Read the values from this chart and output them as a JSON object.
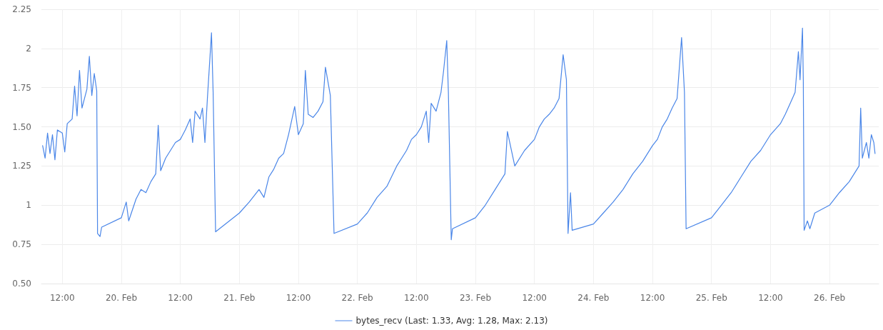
{
  "chart_data": {
    "type": "line",
    "xlim": [
      "--02-19T07:45",
      "--02-26T10:00"
    ],
    "xticks": [
      {
        "value": "--02-19T12:00",
        "label": "12:00"
      },
      {
        "value": "--02-20T00:00",
        "label": "20. Feb"
      },
      {
        "value": "--02-20T12:00",
        "label": "12:00"
      },
      {
        "value": "--02-21T00:00",
        "label": "21. Feb"
      },
      {
        "value": "--02-21T12:00",
        "label": "12:00"
      },
      {
        "value": "--02-22T00:00",
        "label": "22. Feb"
      },
      {
        "value": "--02-22T12:00",
        "label": "12:00"
      },
      {
        "value": "--02-23T00:00",
        "label": "23. Feb"
      },
      {
        "value": "--02-23T12:00",
        "label": "12:00"
      },
      {
        "value": "--02-24T00:00",
        "label": "24. Feb"
      },
      {
        "value": "--02-24T12:00",
        "label": "12:00"
      },
      {
        "value": "--02-25T00:00",
        "label": "25. Feb"
      },
      {
        "value": "--02-25T12:00",
        "label": "12:00"
      },
      {
        "value": "--02-26T00:00",
        "label": "26. Feb"
      }
    ],
    "ylim": [
      0.5,
      2.25
    ],
    "yticks": [
      {
        "value": 0.5,
        "label": "0.50"
      },
      0.75,
      1,
      1.25,
      {
        "value": 1.5,
        "label": "1.50"
      },
      1.75,
      2,
      2.25
    ],
    "grid": true,
    "legend": "bottom",
    "marker": "none",
    "line_style": "solid",
    "series": [
      {
        "name": "bytes_recv (Last: 1.33, Avg: 1.28, Max: 2.13)",
        "color": "#4a86e8",
        "x": [
          "--02-19T08:00",
          "--02-19T08:30",
          "--02-19T09:00",
          "--02-19T09:30",
          "--02-19T10:00",
          "--02-19T10:30",
          "--02-19T11:00",
          "--02-19T12:00",
          "--02-19T12:30",
          "--02-19T13:00",
          "--02-19T14:00",
          "--02-19T14:30",
          "--02-19T15:00",
          "--02-19T15:30",
          "--02-19T16:00",
          "--02-19T16:30",
          "--02-19T17:00",
          "--02-19T17:30",
          "--02-19T18:00",
          "--02-19T18:30",
          "--02-19T19:00",
          "--02-19T19:10",
          "--02-19T19:40",
          "--02-19T20:00",
          "--02-20T00:00",
          "--02-20T01:00",
          "--02-20T01:30",
          "--02-20T03:00",
          "--02-20T04:00",
          "--02-20T05:00",
          "--02-20T06:00",
          "--02-20T07:00",
          "--02-20T07:30",
          "--02-20T08:00",
          "--02-20T09:00",
          "--02-20T10:00",
          "--02-20T11:00",
          "--02-20T12:00",
          "--02-20T13:00",
          "--02-20T14:00",
          "--02-20T14:30",
          "--02-20T15:00",
          "--02-20T16:00",
          "--02-20T16:30",
          "--02-20T17:00",
          "--02-20T17:30",
          "--02-20T18:20",
          "--02-20T18:40",
          "--02-20T19:10",
          "--02-21T00:00",
          "--02-21T02:00",
          "--02-21T04:00",
          "--02-21T05:00",
          "--02-21T06:00",
          "--02-21T07:00",
          "--02-21T08:00",
          "--02-21T09:00",
          "--02-21T10:00",
          "--02-21T11:15",
          "--02-21T12:00",
          "--02-21T13:00",
          "--02-21T13:25",
          "--02-21T14:00",
          "--02-21T15:00",
          "--02-21T16:00",
          "--02-21T17:00",
          "--02-21T17:30",
          "--02-21T18:30",
          "--02-21T19:15",
          "--02-22T00:00",
          "--02-22T02:00",
          "--02-22T04:00",
          "--02-22T06:00",
          "--02-22T08:00",
          "--02-22T09:00",
          "--02-22T10:00",
          "--02-22T11:00",
          "--02-22T12:00",
          "--02-22T13:00",
          "--02-22T14:00",
          "--02-22T14:30",
          "--02-22T15:00",
          "--02-22T16:00",
          "--02-22T17:00",
          "--02-22T17:30",
          "--02-22T18:10",
          "--02-22T18:30",
          "--02-22T19:05",
          "--02-22T19:20",
          "--02-23T00:00",
          "--02-23T02:00",
          "--02-23T04:00",
          "--02-23T06:00",
          "--02-23T06:30",
          "--02-23T08:00",
          "--02-23T10:00",
          "--02-23T12:00",
          "--02-23T13:00",
          "--02-23T14:00",
          "--02-23T15:00",
          "--02-23T16:00",
          "--02-23T17:00",
          "--02-23T17:50",
          "--02-23T18:30",
          "--02-23T18:50",
          "--02-23T19:20",
          "--02-23T19:40",
          "--02-24T00:00",
          "--02-24T02:00",
          "--02-24T04:00",
          "--02-24T06:00",
          "--02-24T08:00",
          "--02-24T10:00",
          "--02-24T12:00",
          "--02-24T13:00",
          "--02-24T14:00",
          "--02-24T15:00",
          "--02-24T16:00",
          "--02-24T17:00",
          "--02-24T17:55",
          "--02-24T18:30",
          "--02-24T18:50",
          "--02-25T00:00",
          "--02-25T02:00",
          "--02-25T04:00",
          "--02-25T06:00",
          "--02-25T08:00",
          "--02-25T10:00",
          "--02-25T12:00",
          "--02-25T14:00",
          "--02-25T15:00",
          "--02-25T16:00",
          "--02-25T17:00",
          "--02-25T17:40",
          "--02-25T18:00",
          "--02-25T18:30",
          "--02-25T18:40",
          "--02-25T18:50",
          "--02-25T19:30",
          "--02-25T20:00",
          "--02-25T21:00",
          "--02-26T00:00",
          "--02-26T02:00",
          "--02-26T04:00",
          "--02-26T06:00",
          "--02-26T06:20",
          "--02-26T06:40",
          "--02-26T07:30",
          "--02-26T08:00",
          "--02-26T08:30",
          "--02-26T09:00",
          "--02-26T09:15"
        ],
        "values": [
          1.38,
          1.3,
          1.46,
          1.33,
          1.45,
          1.29,
          1.48,
          1.46,
          1.34,
          1.52,
          1.55,
          1.76,
          1.57,
          1.86,
          1.62,
          1.68,
          1.74,
          1.95,
          1.7,
          1.84,
          1.73,
          0.82,
          0.8,
          0.86,
          0.92,
          1.02,
          0.9,
          1.04,
          1.1,
          1.08,
          1.15,
          1.2,
          1.51,
          1.22,
          1.3,
          1.35,
          1.4,
          1.42,
          1.48,
          1.55,
          1.4,
          1.6,
          1.55,
          1.62,
          1.4,
          1.68,
          2.1,
          1.72,
          0.83,
          0.95,
          1.02,
          1.1,
          1.05,
          1.18,
          1.23,
          1.3,
          1.33,
          1.45,
          1.63,
          1.45,
          1.52,
          1.86,
          1.58,
          1.56,
          1.6,
          1.66,
          1.88,
          1.7,
          0.82,
          0.88,
          0.95,
          1.05,
          1.12,
          1.25,
          1.3,
          1.35,
          1.42,
          1.45,
          1.5,
          1.6,
          1.4,
          1.65,
          1.6,
          1.72,
          1.85,
          2.05,
          1.72,
          0.78,
          0.85,
          0.92,
          1.0,
          1.1,
          1.2,
          1.47,
          1.25,
          1.35,
          1.42,
          1.5,
          1.55,
          1.58,
          1.62,
          1.68,
          1.96,
          1.8,
          0.82,
          1.08,
          0.84,
          0.88,
          0.95,
          1.02,
          1.1,
          1.2,
          1.28,
          1.38,
          1.42,
          1.5,
          1.55,
          1.62,
          1.68,
          2.07,
          1.72,
          0.85,
          0.92,
          1.0,
          1.08,
          1.18,
          1.28,
          1.35,
          1.45,
          1.52,
          1.58,
          1.65,
          1.72,
          1.98,
          1.8,
          2.13,
          1.8,
          0.84,
          0.9,
          0.85,
          0.95,
          1.0,
          1.08,
          1.15,
          1.25,
          1.62,
          1.3,
          1.4,
          1.3,
          1.45,
          1.4,
          1.33
        ]
      }
    ]
  }
}
